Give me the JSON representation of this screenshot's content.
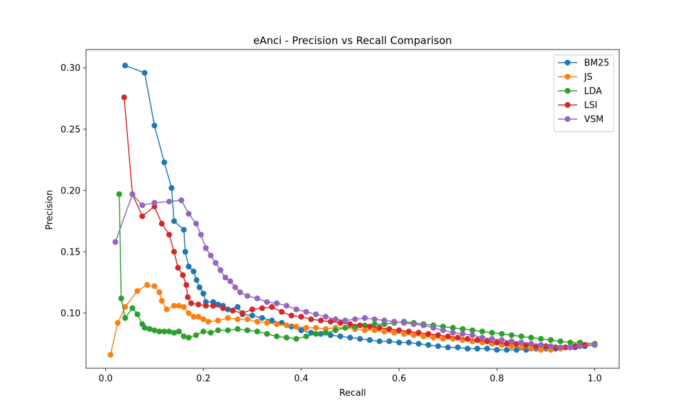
{
  "chart_data": {
    "type": "line",
    "title": "eAnci - Precision vs Recall Comparison",
    "xlabel": "Recall",
    "ylabel": "Precision",
    "xlim": [
      -0.04,
      1.05
    ],
    "ylim": [
      0.055,
      0.315
    ],
    "xticks": [
      0.0,
      0.2,
      0.4,
      0.6,
      0.8,
      1.0
    ],
    "xtick_labels": [
      "0.0",
      "0.2",
      "0.4",
      "0.6",
      "0.8",
      "1.0"
    ],
    "yticks": [
      0.1,
      0.15,
      0.2,
      0.25,
      0.3
    ],
    "ytick_labels": [
      "0.10",
      "0.15",
      "0.20",
      "0.25",
      "0.30"
    ],
    "grid": false,
    "legend_position": "top-right",
    "series": [
      {
        "name": "BM25",
        "color": "#1f77b4",
        "points": [
          [
            0.04,
            0.302
          ],
          [
            0.08,
            0.296
          ],
          [
            0.1,
            0.253
          ],
          [
            0.12,
            0.223
          ],
          [
            0.135,
            0.202
          ],
          [
            0.14,
            0.175
          ],
          [
            0.16,
            0.168
          ],
          [
            0.163,
            0.15
          ],
          [
            0.17,
            0.138
          ],
          [
            0.18,
            0.134
          ],
          [
            0.186,
            0.127
          ],
          [
            0.192,
            0.121
          ],
          [
            0.2,
            0.116
          ],
          [
            0.205,
            0.109
          ],
          [
            0.22,
            0.109
          ],
          [
            0.23,
            0.107
          ],
          [
            0.24,
            0.106
          ],
          [
            0.25,
            0.103
          ],
          [
            0.27,
            0.105
          ],
          [
            0.28,
            0.099
          ],
          [
            0.3,
            0.098
          ],
          [
            0.32,
            0.096
          ],
          [
            0.34,
            0.094
          ],
          [
            0.36,
            0.092
          ],
          [
            0.38,
            0.089
          ],
          [
            0.4,
            0.086
          ],
          [
            0.42,
            0.084
          ],
          [
            0.44,
            0.083
          ],
          [
            0.46,
            0.082
          ],
          [
            0.48,
            0.081
          ],
          [
            0.5,
            0.08
          ],
          [
            0.52,
            0.079
          ],
          [
            0.54,
            0.078
          ],
          [
            0.56,
            0.077
          ],
          [
            0.58,
            0.077
          ],
          [
            0.6,
            0.076
          ],
          [
            0.62,
            0.076
          ],
          [
            0.64,
            0.075
          ],
          [
            0.66,
            0.074
          ],
          [
            0.68,
            0.073
          ],
          [
            0.7,
            0.072
          ],
          [
            0.72,
            0.072
          ],
          [
            0.74,
            0.071
          ],
          [
            0.76,
            0.071
          ],
          [
            0.78,
            0.071
          ],
          [
            0.8,
            0.07
          ],
          [
            0.82,
            0.07
          ],
          [
            0.84,
            0.07
          ],
          [
            0.86,
            0.07
          ],
          [
            0.88,
            0.071
          ],
          [
            0.9,
            0.071
          ],
          [
            0.92,
            0.071
          ],
          [
            0.94,
            0.072
          ],
          [
            0.96,
            0.072
          ],
          [
            0.98,
            0.073
          ],
          [
            1.0,
            0.074
          ]
        ]
      },
      {
        "name": "JS",
        "color": "#ff7f0e",
        "points": [
          [
            0.01,
            0.066
          ],
          [
            0.025,
            0.092
          ],
          [
            0.04,
            0.105
          ],
          [
            0.065,
            0.118
          ],
          [
            0.085,
            0.123
          ],
          [
            0.1,
            0.122
          ],
          [
            0.11,
            0.117
          ],
          [
            0.115,
            0.11
          ],
          [
            0.125,
            0.103
          ],
          [
            0.14,
            0.106
          ],
          [
            0.15,
            0.106
          ],
          [
            0.16,
            0.105
          ],
          [
            0.17,
            0.1
          ],
          [
            0.18,
            0.097
          ],
          [
            0.19,
            0.097
          ],
          [
            0.2,
            0.095
          ],
          [
            0.21,
            0.093
          ],
          [
            0.23,
            0.094
          ],
          [
            0.25,
            0.096
          ],
          [
            0.27,
            0.095
          ],
          [
            0.29,
            0.095
          ],
          [
            0.31,
            0.093
          ],
          [
            0.33,
            0.092
          ],
          [
            0.35,
            0.091
          ],
          [
            0.37,
            0.09
          ],
          [
            0.39,
            0.089
          ],
          [
            0.41,
            0.088
          ],
          [
            0.43,
            0.088
          ],
          [
            0.45,
            0.087
          ],
          [
            0.47,
            0.088
          ],
          [
            0.49,
            0.088
          ],
          [
            0.51,
            0.087
          ],
          [
            0.53,
            0.086
          ],
          [
            0.55,
            0.086
          ],
          [
            0.57,
            0.085
          ],
          [
            0.59,
            0.084
          ],
          [
            0.61,
            0.083
          ],
          [
            0.63,
            0.082
          ],
          [
            0.65,
            0.081
          ],
          [
            0.67,
            0.08
          ],
          [
            0.69,
            0.079
          ],
          [
            0.71,
            0.079
          ],
          [
            0.73,
            0.078
          ],
          [
            0.75,
            0.077
          ],
          [
            0.77,
            0.076
          ],
          [
            0.79,
            0.075
          ],
          [
            0.81,
            0.074
          ],
          [
            0.83,
            0.073
          ],
          [
            0.85,
            0.072
          ],
          [
            0.87,
            0.071
          ],
          [
            0.89,
            0.07
          ],
          [
            0.91,
            0.07
          ],
          [
            0.93,
            0.071
          ],
          [
            0.95,
            0.072
          ],
          [
            0.97,
            0.073
          ],
          [
            1.0,
            0.074
          ]
        ]
      },
      {
        "name": "LDA",
        "color": "#2ca02c",
        "points": [
          [
            0.028,
            0.197
          ],
          [
            0.032,
            0.112
          ],
          [
            0.04,
            0.096
          ],
          [
            0.055,
            0.104
          ],
          [
            0.065,
            0.099
          ],
          [
            0.075,
            0.091
          ],
          [
            0.08,
            0.088
          ],
          [
            0.09,
            0.087
          ],
          [
            0.1,
            0.086
          ],
          [
            0.11,
            0.085
          ],
          [
            0.12,
            0.085
          ],
          [
            0.13,
            0.085
          ],
          [
            0.14,
            0.084
          ],
          [
            0.15,
            0.085
          ],
          [
            0.16,
            0.081
          ],
          [
            0.17,
            0.08
          ],
          [
            0.185,
            0.082
          ],
          [
            0.2,
            0.085
          ],
          [
            0.215,
            0.084
          ],
          [
            0.23,
            0.086
          ],
          [
            0.25,
            0.086
          ],
          [
            0.27,
            0.087
          ],
          [
            0.29,
            0.086
          ],
          [
            0.31,
            0.085
          ],
          [
            0.33,
            0.083
          ],
          [
            0.35,
            0.081
          ],
          [
            0.37,
            0.08
          ],
          [
            0.39,
            0.079
          ],
          [
            0.41,
            0.081
          ],
          [
            0.43,
            0.083
          ],
          [
            0.45,
            0.084
          ],
          [
            0.47,
            0.086
          ],
          [
            0.49,
            0.088
          ],
          [
            0.51,
            0.089
          ],
          [
            0.53,
            0.09
          ],
          [
            0.55,
            0.091
          ],
          [
            0.57,
            0.091
          ],
          [
            0.59,
            0.092
          ],
          [
            0.61,
            0.093
          ],
          [
            0.63,
            0.092
          ],
          [
            0.65,
            0.091
          ],
          [
            0.67,
            0.09
          ],
          [
            0.69,
            0.089
          ],
          [
            0.71,
            0.088
          ],
          [
            0.73,
            0.087
          ],
          [
            0.75,
            0.086
          ],
          [
            0.77,
            0.085
          ],
          [
            0.79,
            0.084
          ],
          [
            0.81,
            0.083
          ],
          [
            0.83,
            0.082
          ],
          [
            0.85,
            0.081
          ],
          [
            0.87,
            0.08
          ],
          [
            0.89,
            0.079
          ],
          [
            0.91,
            0.078
          ],
          [
            0.93,
            0.077
          ],
          [
            0.95,
            0.076
          ],
          [
            0.97,
            0.076
          ],
          [
            1.0,
            0.075
          ]
        ]
      },
      {
        "name": "LSI",
        "color": "#d62728",
        "points": [
          [
            0.038,
            0.276
          ],
          [
            0.055,
            0.197
          ],
          [
            0.075,
            0.179
          ],
          [
            0.1,
            0.187
          ],
          [
            0.115,
            0.173
          ],
          [
            0.13,
            0.164
          ],
          [
            0.14,
            0.15
          ],
          [
            0.148,
            0.137
          ],
          [
            0.158,
            0.131
          ],
          [
            0.165,
            0.123
          ],
          [
            0.168,
            0.113
          ],
          [
            0.175,
            0.108
          ],
          [
            0.19,
            0.107
          ],
          [
            0.205,
            0.106
          ],
          [
            0.22,
            0.106
          ],
          [
            0.24,
            0.104
          ],
          [
            0.26,
            0.102
          ],
          [
            0.28,
            0.1
          ],
          [
            0.3,
            0.103
          ],
          [
            0.32,
            0.104
          ],
          [
            0.34,
            0.105
          ],
          [
            0.36,
            0.101
          ],
          [
            0.38,
            0.098
          ],
          [
            0.4,
            0.097
          ],
          [
            0.42,
            0.095
          ],
          [
            0.44,
            0.094
          ],
          [
            0.46,
            0.093
          ],
          [
            0.48,
            0.092
          ],
          [
            0.5,
            0.091
          ],
          [
            0.52,
            0.09
          ],
          [
            0.54,
            0.089
          ],
          [
            0.56,
            0.088
          ],
          [
            0.58,
            0.087
          ],
          [
            0.6,
            0.086
          ],
          [
            0.62,
            0.085
          ],
          [
            0.64,
            0.084
          ],
          [
            0.66,
            0.083
          ],
          [
            0.68,
            0.082
          ],
          [
            0.7,
            0.081
          ],
          [
            0.72,
            0.08
          ],
          [
            0.74,
            0.079
          ],
          [
            0.76,
            0.078
          ],
          [
            0.78,
            0.077
          ],
          [
            0.8,
            0.076
          ],
          [
            0.82,
            0.075
          ],
          [
            0.84,
            0.075
          ],
          [
            0.86,
            0.074
          ],
          [
            0.88,
            0.073
          ],
          [
            0.9,
            0.073
          ],
          [
            0.92,
            0.072
          ],
          [
            0.94,
            0.072
          ],
          [
            0.96,
            0.073
          ],
          [
            0.98,
            0.074
          ],
          [
            1.0,
            0.074
          ]
        ]
      },
      {
        "name": "VSM",
        "color": "#9467bd",
        "points": [
          [
            0.02,
            0.158
          ],
          [
            0.055,
            0.197
          ],
          [
            0.075,
            0.188
          ],
          [
            0.1,
            0.19
          ],
          [
            0.13,
            0.191
          ],
          [
            0.155,
            0.192
          ],
          [
            0.17,
            0.181
          ],
          [
            0.185,
            0.173
          ],
          [
            0.195,
            0.164
          ],
          [
            0.205,
            0.153
          ],
          [
            0.215,
            0.147
          ],
          [
            0.225,
            0.141
          ],
          [
            0.235,
            0.135
          ],
          [
            0.245,
            0.129
          ],
          [
            0.255,
            0.126
          ],
          [
            0.265,
            0.121
          ],
          [
            0.275,
            0.117
          ],
          [
            0.29,
            0.114
          ],
          [
            0.31,
            0.112
          ],
          [
            0.33,
            0.109
          ],
          [
            0.35,
            0.108
          ],
          [
            0.37,
            0.106
          ],
          [
            0.39,
            0.103
          ],
          [
            0.41,
            0.101
          ],
          [
            0.43,
            0.099
          ],
          [
            0.45,
            0.097
          ],
          [
            0.47,
            0.095
          ],
          [
            0.49,
            0.094
          ],
          [
            0.51,
            0.095
          ],
          [
            0.53,
            0.096
          ],
          [
            0.55,
            0.095
          ],
          [
            0.57,
            0.094
          ],
          [
            0.59,
            0.093
          ],
          [
            0.61,
            0.092
          ],
          [
            0.63,
            0.091
          ],
          [
            0.65,
            0.09
          ],
          [
            0.67,
            0.088
          ],
          [
            0.69,
            0.086
          ],
          [
            0.71,
            0.084
          ],
          [
            0.73,
            0.083
          ],
          [
            0.75,
            0.082
          ],
          [
            0.77,
            0.08
          ],
          [
            0.79,
            0.079
          ],
          [
            0.81,
            0.078
          ],
          [
            0.83,
            0.077
          ],
          [
            0.85,
            0.076
          ],
          [
            0.87,
            0.075
          ],
          [
            0.89,
            0.074
          ],
          [
            0.91,
            0.073
          ],
          [
            0.93,
            0.072
          ],
          [
            0.95,
            0.072
          ],
          [
            0.97,
            0.073
          ],
          [
            1.0,
            0.074
          ]
        ]
      }
    ]
  }
}
